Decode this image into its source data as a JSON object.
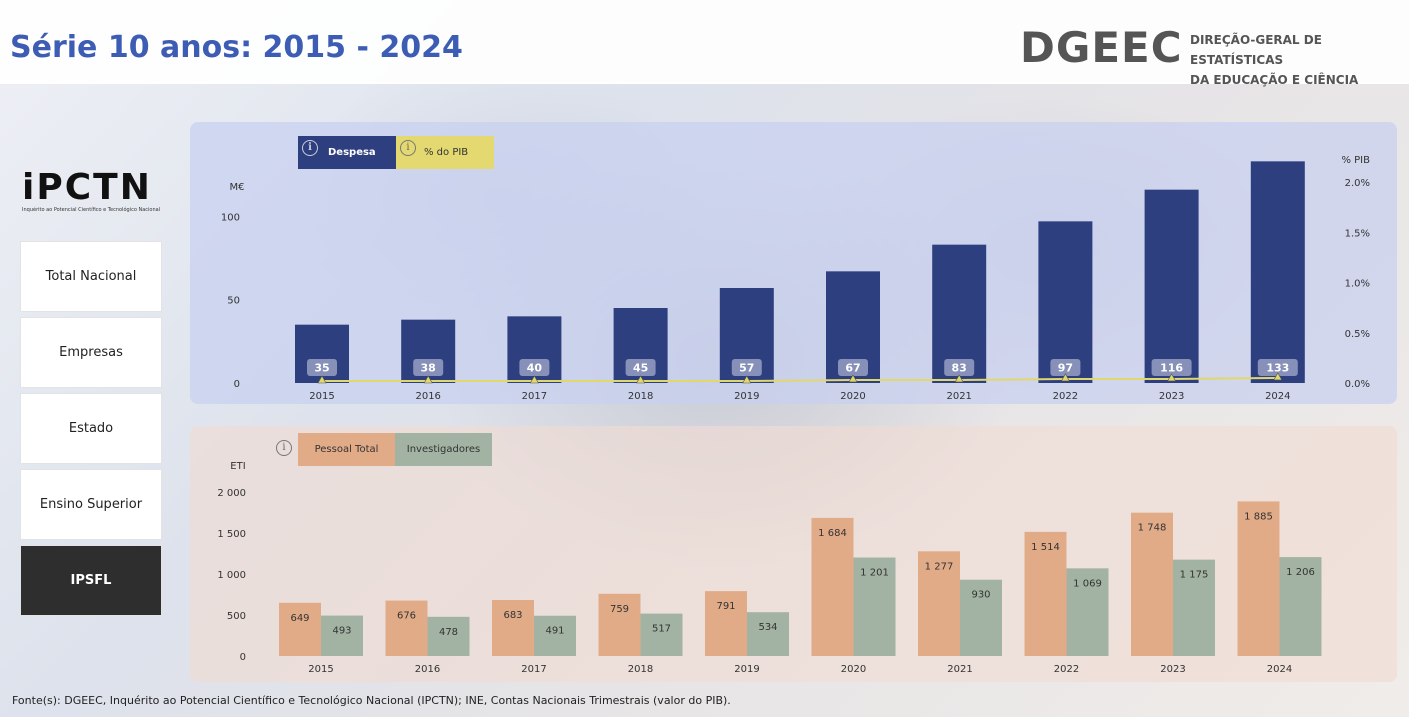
{
  "header": {
    "title": "Série 10 anos: 2015 - 2024",
    "logo_mark": "DGEEC",
    "logo_line1": "DIREÇÃO-GERAL DE ESTATÍSTICAS",
    "logo_line2": "DA EDUCAÇÃO E CIÊNCIA"
  },
  "sidebar": {
    "brand": "iPCTN",
    "brand_sub": "Inquérito ao Potencial Científico e Tecnológico Nacional",
    "items": [
      {
        "label": "Total Nacional",
        "active": false
      },
      {
        "label": "Empresas",
        "active": false
      },
      {
        "label": "Estado",
        "active": false
      },
      {
        "label": "Ensino Superior",
        "active": false
      },
      {
        "label": "IPSFL",
        "active": true
      }
    ]
  },
  "top_panel": {
    "toggle_despesa": "Despesa",
    "toggle_pib": "% do PIB",
    "colors": {
      "bar": "#2e3f7f",
      "line": "#e0d86a",
      "label_bg": "#8690b8"
    }
  },
  "bottom_panel": {
    "toggle_pessoal": "Pessoal Total",
    "toggle_investigadores": "Investigadores",
    "colors": {
      "pessoal": "#e2ab88",
      "investigadores": "#a3b3a3"
    }
  },
  "chart_data": [
    {
      "type": "bar",
      "title": "Despesa",
      "ylabel": "M€",
      "y2label": "% PIB",
      "categories": [
        "2015",
        "2016",
        "2017",
        "2018",
        "2019",
        "2020",
        "2021",
        "2022",
        "2023",
        "2024"
      ],
      "values": [
        35,
        38,
        40,
        45,
        57,
        67,
        83,
        97,
        116,
        133
      ],
      "ylim": [
        0,
        150
      ],
      "yticks": [
        0,
        50,
        100
      ],
      "y2ticks": [
        "0.0%",
        "0.5%",
        "1.0%",
        "1.5%",
        "2.0%"
      ],
      "y2lim": [
        0,
        2.0
      ],
      "line_series": {
        "name": "% do PIB",
        "values": [
          0.02,
          0.02,
          0.02,
          0.02,
          0.02,
          0.03,
          0.03,
          0.04,
          0.04,
          0.05
        ]
      }
    },
    {
      "type": "bar",
      "title": "Pessoal",
      "ylabel": "ETI",
      "categories": [
        "2015",
        "2016",
        "2017",
        "2018",
        "2019",
        "2020",
        "2021",
        "2022",
        "2023",
        "2024"
      ],
      "ylim": [
        0,
        2000
      ],
      "yticks": [
        "0",
        "500",
        "1 000",
        "1 500",
        "2 000"
      ],
      "series": [
        {
          "name": "Pessoal Total",
          "values": [
            649,
            676,
            683,
            759,
            791,
            1684,
            1277,
            1514,
            1748,
            1885
          ],
          "labels": [
            "649",
            "676",
            "683",
            "759",
            "791",
            "1 684",
            "1 277",
            "1 514",
            "1 748",
            "1 885"
          ]
        },
        {
          "name": "Investigadores",
          "values": [
            493,
            478,
            491,
            517,
            534,
            1201,
            930,
            1069,
            1175,
            1206
          ],
          "labels": [
            "493",
            "478",
            "491",
            "517",
            "534",
            "1 201",
            "930",
            "1 069",
            "1 175",
            "1 206"
          ]
        }
      ]
    }
  ],
  "footer": {
    "source": "Fonte(s): DGEEC, Inquérito ao Potencial Científico e Tecnológico Nacional (IPCTN); INE, Contas Nacionais Trimestrais (valor do PIB)."
  }
}
